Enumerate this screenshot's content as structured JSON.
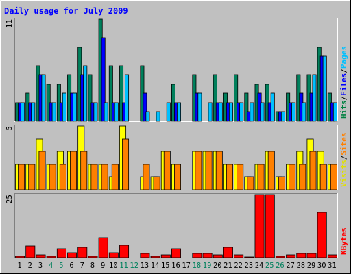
{
  "chart_data": {
    "type": "bar",
    "title": "Daily usage for July 2009",
    "days": [
      "1",
      "2",
      "3",
      "4",
      "5",
      "6",
      "7",
      "8",
      "9",
      "10",
      "11",
      "12",
      "13",
      "14",
      "15",
      "16",
      "17",
      "18",
      "19",
      "20",
      "21",
      "22",
      "23",
      "24",
      "25",
      "26",
      "27",
      "28",
      "29",
      "30",
      "31"
    ],
    "weekend_days": [
      "4",
      "5",
      "11",
      "12",
      "18",
      "19",
      "25",
      "26"
    ],
    "panels": [
      {
        "id": "hits",
        "ymax": 11,
        "ymax_label": "11",
        "labels": [
          {
            "text": "Hits",
            "color": "#008040"
          },
          {
            "text": "/",
            "color": "#000000"
          },
          {
            "text": "Files",
            "color": "#0000ff"
          },
          {
            "text": "/",
            "color": "#000000"
          },
          {
            "text": "Pages",
            "color": "#00c0ff"
          }
        ],
        "series": [
          {
            "name": "Hits",
            "color": "#00805c",
            "values": [
              2,
              3,
              6,
              4,
              4,
              5,
              8,
              5,
              11,
              6,
              6,
              0,
              6,
              0,
              0,
              4,
              0,
              5,
              0,
              5,
              3,
              5,
              3,
              4,
              4,
              1,
              3,
              5,
              5,
              8,
              3
            ]
          },
          {
            "name": "Files",
            "color": "#0000ff",
            "values": [
              2,
              2,
              5,
              2,
              2,
              3,
              5,
              2,
              9,
              2,
              2,
              0,
              3,
              0,
              0,
              2,
              0,
              3,
              0,
              2,
              2,
              2,
              1,
              3,
              2,
              1,
              2,
              3,
              3,
              7,
              2
            ]
          },
          {
            "name": "Pages",
            "color": "#00c0ff",
            "values": [
              2,
              2,
              5,
              2,
              3,
              3,
              6,
              2,
              2,
              2,
              5,
              0,
              1,
              1,
              2,
              2,
              0,
              3,
              2,
              2,
              2,
              2,
              2,
              2,
              3,
              1,
              2,
              2,
              5,
              7,
              2
            ]
          }
        ]
      },
      {
        "id": "visits",
        "ymax": 5,
        "ymax_label": "5",
        "labels": [
          {
            "text": "Visits",
            "color": "#e0e000"
          },
          {
            "text": "/",
            "color": "#000000"
          },
          {
            "text": "Sites",
            "color": "#ff8000"
          }
        ],
        "series": [
          {
            "name": "Visits",
            "color": "#ffff00",
            "values": [
              2,
              2,
              4,
              2,
              3,
              3,
              5,
              2,
              2,
              1,
              5,
              0,
              1,
              1,
              3,
              2,
              0,
              3,
              3,
              3,
              2,
              2,
              1,
              2,
              3,
              1,
              2,
              3,
              4,
              3,
              2
            ]
          },
          {
            "name": "Sites",
            "color": "#ff8000",
            "values": [
              2,
              2,
              3,
              2,
              2,
              3,
              3,
              2,
              2,
              2,
              4,
              0,
              2,
              1,
              3,
              2,
              0,
              3,
              3,
              3,
              2,
              2,
              1,
              2,
              3,
              1,
              2,
              2,
              3,
              2,
              2
            ]
          }
        ]
      },
      {
        "id": "kbytes",
        "ymax": 25,
        "ymax_label": "25",
        "labels": [
          {
            "text": "KBytes",
            "color": "#ff0000"
          }
        ],
        "series": [
          {
            "name": "KBytes",
            "color": "#ff0000",
            "values": [
              0.5,
              4.5,
              1,
              0.5,
              3.5,
              2,
              4,
              0.5,
              8,
              2,
              5,
              0,
              1.5,
              0.5,
              1,
              3.5,
              0,
              1.5,
              1.5,
              1,
              4,
              1,
              0.3,
              25,
              25,
              0.5,
              1,
              1.5,
              1.5,
              18,
              1
            ]
          }
        ]
      }
    ],
    "colors": {
      "background": "#c0c0c0",
      "title": "#0000ff",
      "weekday_label": "#000000",
      "weekend_label": "#00805c",
      "gridline": "#808080"
    }
  }
}
